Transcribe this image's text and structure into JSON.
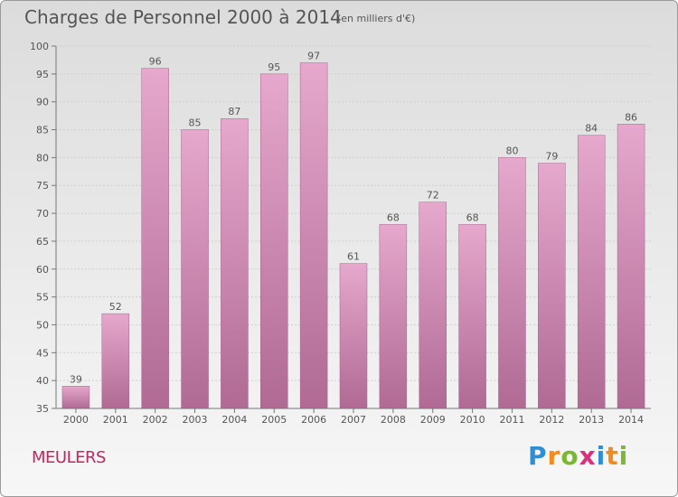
{
  "header": {
    "title": "Charges de Personnel 2000 à 2014",
    "subtitle": "(en milliers d'€)"
  },
  "footer": {
    "commune": "MEULERS",
    "logo_text": "Proxiti"
  },
  "colors": {
    "bar_top": "#e6a8cd",
    "bar_bottom": "#b06a94",
    "commune": "#c2275f"
  },
  "chart_data": {
    "type": "bar",
    "title": "Charges de Personnel 2000 à 2014",
    "subtitle": "(en milliers d'€)",
    "categories": [
      "2000",
      "2001",
      "2002",
      "2003",
      "2004",
      "2005",
      "2006",
      "2007",
      "2008",
      "2009",
      "2010",
      "2011",
      "2012",
      "2013",
      "2014"
    ],
    "values": [
      39,
      52,
      96,
      85,
      87,
      95,
      97,
      61,
      68,
      72,
      68,
      80,
      79,
      84,
      86
    ],
    "ylim": [
      35,
      100
    ],
    "yticks": [
      35,
      40,
      45,
      50,
      55,
      60,
      65,
      70,
      75,
      80,
      85,
      90,
      95,
      100
    ],
    "grid": true,
    "legend": "none"
  }
}
